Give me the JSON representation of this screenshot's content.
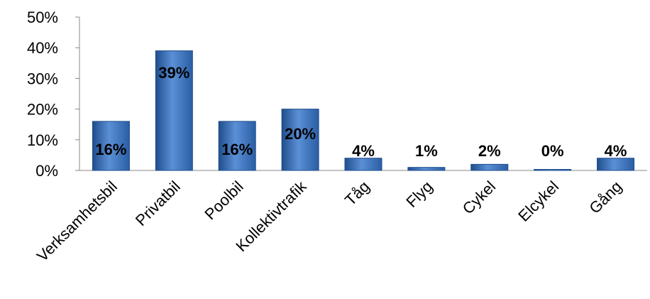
{
  "chart_data": {
    "type": "bar",
    "title": "",
    "xlabel": "",
    "ylabel": "",
    "categories": [
      "Verksamhetsbil",
      "Privatbil",
      "Poolbil",
      "Kollektivtrafik",
      "Tåg",
      "Flyg",
      "Cykel",
      "Elcykel",
      "Gång"
    ],
    "values": [
      16,
      39,
      16,
      20,
      4,
      1,
      2,
      0,
      4
    ],
    "data_labels": [
      "16%",
      "39%",
      "16%",
      "20%",
      "4%",
      "1%",
      "2%",
      "0%",
      "4%"
    ],
    "yticks": [
      "0%",
      "10%",
      "20%",
      "30%",
      "40%",
      "50%"
    ],
    "ylim": [
      0,
      50
    ],
    "grid": false,
    "legend": "none",
    "bar_color": "#3d74b8",
    "bar_color_light": "#6a9be0",
    "bar_color_dark": "#1f4e8c"
  }
}
